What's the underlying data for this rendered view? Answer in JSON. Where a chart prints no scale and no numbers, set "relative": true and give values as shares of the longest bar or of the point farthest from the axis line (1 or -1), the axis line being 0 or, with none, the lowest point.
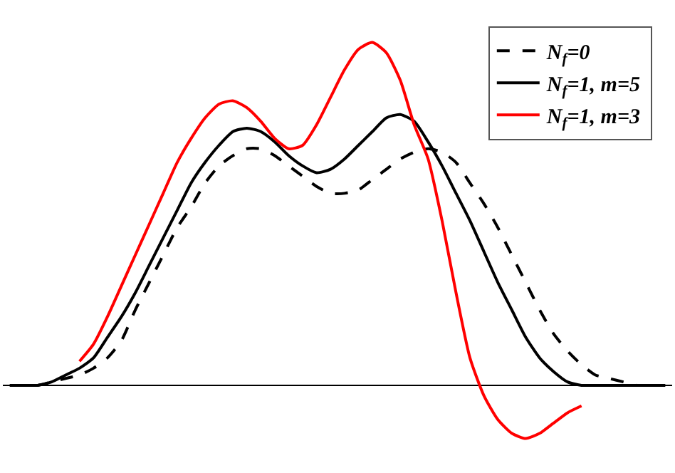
{
  "chart_data": {
    "type": "line",
    "relative": true,
    "legend": "top right",
    "categories": [
      null,
      null,
      null,
      null,
      null,
      null,
      null,
      null,
      null,
      null,
      null,
      null,
      null,
      null,
      null,
      null,
      null,
      null,
      null,
      null,
      null,
      null,
      null,
      null,
      null,
      null,
      null,
      null,
      null,
      null,
      null,
      null,
      null,
      null,
      null,
      null,
      null,
      null,
      null,
      null,
      null,
      null,
      null,
      null,
      null,
      null,
      null,
      null
    ],
    "series": [
      {
        "name": "N$_{f}$=0",
        "color": "#000000",
        "line_style": "dashed",
        "values": [
          0,
          0,
          0,
          0.01,
          0.02,
          0.03,
          0.05,
          0.08,
          0.13,
          0.22,
          0.3,
          0.38,
          0.46,
          0.52,
          0.59,
          0.64,
          0.67,
          0.69,
          0.69,
          0.67,
          0.64,
          0.61,
          0.58,
          0.56,
          0.56,
          0.57,
          0.6,
          0.63,
          0.66,
          0.68,
          0.69,
          0.68,
          0.65,
          0.59,
          0.53,
          0.46,
          0.38,
          0.3,
          0.22,
          0.15,
          0.1,
          0.06,
          0.03,
          0.02,
          0.01,
          0,
          0,
          0
        ]
      },
      {
        "name": "N$_{f}$=1, m=5",
        "color": "#000000",
        "line_style": "solid",
        "values": [
          0,
          0,
          0,
          0.01,
          0.03,
          0.05,
          0.08,
          0.14,
          0.2,
          0.27,
          0.35,
          0.43,
          0.51,
          0.59,
          0.65,
          0.7,
          0.74,
          0.75,
          0.74,
          0.71,
          0.67,
          0.64,
          0.62,
          0.63,
          0.66,
          0.7,
          0.74,
          0.78,
          0.79,
          0.77,
          0.71,
          0.64,
          0.56,
          0.48,
          0.39,
          0.3,
          0.22,
          0.14,
          0.08,
          0.04,
          0.01,
          0,
          0,
          0,
          0,
          0,
          0,
          0
        ]
      },
      {
        "name": "N$_{f}$=1, m=3",
        "color": "#ff0000",
        "line_style": "solid",
        "values": [
          null,
          null,
          null,
          null,
          null,
          0.07,
          0.12,
          0.2,
          0.29,
          0.38,
          0.47,
          0.56,
          0.65,
          0.72,
          0.78,
          0.82,
          0.83,
          0.81,
          0.77,
          0.72,
          0.69,
          0.7,
          0.76,
          0.84,
          0.92,
          0.98,
          1.0,
          0.97,
          0.89,
          0.76,
          0.66,
          0.48,
          0.27,
          0.08,
          -0.03,
          -0.1,
          -0.14,
          -0.155,
          -0.14,
          -0.11,
          -0.08,
          -0.06,
          null,
          null,
          null,
          null,
          null,
          null
        ]
      }
    ]
  }
}
